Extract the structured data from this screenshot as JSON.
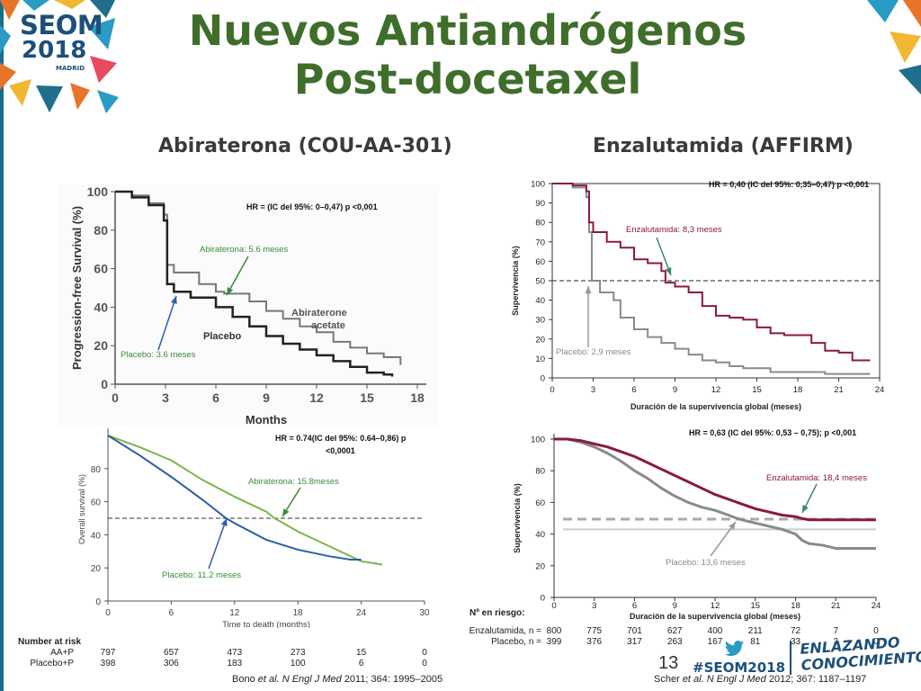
{
  "logo": {
    "line1": "SEOM",
    "line2": "2018",
    "city": "MADRID"
  },
  "title": {
    "line1": "Nuevos Antiandrógenos",
    "line2": "Post-docetaxel"
  },
  "subtitles": {
    "left": "Abiraterona (COU-AA-301)",
    "right": "Enzalutamida (AFFIRM)"
  },
  "page_number": "13",
  "hashtag": "#SEOM2018",
  "tagline": {
    "line1": "ENLAZANDO",
    "line2": "CONOCIMIENTO"
  },
  "citations": {
    "left": {
      "authors": "Bono",
      "etal": "et al.",
      "journal": "N Engl J Med",
      "rest": "2011; 364: 1995–2005"
    },
    "right": {
      "authors": "Scher",
      "etal": "et al.",
      "journal": "N Engl J Med",
      "rest": "2012; 367: 1187–1197"
    }
  },
  "colors": {
    "title_green": "#3f6e2b",
    "enzalutamide": "#8b1a3a",
    "placebo_gray": "#8a8a8a",
    "abiraterone_green": "#7ab648",
    "placebo_blue": "#2a5ea8",
    "annotation_green": "#3a8a3a"
  },
  "chart_data": [
    {
      "id": "abi_pfs",
      "type": "line",
      "xlabel": "Months",
      "ylabel": "Progression-free Survival (%)",
      "x_ticks": [
        0,
        3,
        6,
        9,
        12,
        15,
        18
      ],
      "y_ticks": [
        0,
        20,
        40,
        60,
        80,
        100
      ],
      "xlim": [
        0,
        18
      ],
      "ylim": [
        0,
        100
      ],
      "hr_text": "HR = (IC del 95%: 0–0,47) p <0,001",
      "annotations": {
        "drug": "Abiraterona: 5.6 meses",
        "placebo": "Placebo: 3.6 meses"
      },
      "curve_labels": {
        "drug1": "Abiraterone",
        "drug2": "acetate",
        "placebo": "Placebo"
      },
      "series": [
        {
          "name": "Abiraterone acetate",
          "x": [
            0,
            1,
            2,
            2.9,
            3.1,
            3.5,
            5,
            6,
            6.5,
            8,
            9,
            10,
            11,
            12,
            13,
            14,
            15,
            16,
            17
          ],
          "y": [
            100,
            98,
            94,
            88,
            62,
            58,
            52,
            48,
            47,
            43,
            38,
            34,
            30,
            27,
            22,
            19,
            16,
            14,
            10
          ]
        },
        {
          "name": "Placebo",
          "x": [
            0,
            1,
            2,
            2.9,
            3.1,
            3.5,
            4.5,
            6,
            7,
            8,
            9,
            10,
            11,
            12,
            13,
            14,
            15,
            16,
            16.5
          ],
          "y": [
            100,
            97,
            93,
            85,
            52,
            48,
            45,
            40,
            35,
            30,
            25,
            21,
            18,
            15,
            12,
            9,
            6,
            5,
            4
          ]
        }
      ]
    },
    {
      "id": "abi_os",
      "type": "line",
      "xlabel": "Time to death (months)",
      "ylabel": "Overall survival (%)",
      "x_ticks": [
        0,
        6,
        12,
        18,
        24,
        30
      ],
      "y_ticks": [
        0,
        20,
        40,
        60,
        80
      ],
      "xlim": [
        0,
        30
      ],
      "ylim": [
        0,
        100
      ],
      "reference_y": 50,
      "hr_text_line1": "HR = 0.74(IC del 95%: 0.64–0,86) p",
      "hr_text_line2": "<0,0001",
      "annotations": {
        "drug": "Abiraterona: 15.8meses",
        "placebo": "Placebo: 11.2 meses"
      },
      "series": [
        {
          "name": "AA+P",
          "x": [
            0,
            3,
            6,
            9,
            12,
            15,
            15.8,
            18,
            21,
            24,
            26
          ],
          "y": [
            100,
            93,
            85,
            73,
            63,
            54,
            50,
            42,
            33,
            24,
            22
          ]
        },
        {
          "name": "Placebo+P",
          "x": [
            0,
            3,
            6,
            9,
            11.2,
            12,
            15,
            18,
            21,
            23,
            24
          ],
          "y": [
            100,
            88,
            75,
            61,
            50,
            47,
            37,
            31,
            27,
            25,
            25
          ]
        }
      ],
      "risk_table": {
        "header": "Number at risk",
        "rows": [
          {
            "label": "AA+P",
            "values": [
              "797",
              "657",
              "473",
              "273",
              "15",
              "0"
            ]
          },
          {
            "label": "Placebo+P",
            "values": [
              "398",
              "306",
              "183",
              "100",
              "6",
              "0"
            ]
          }
        ]
      }
    },
    {
      "id": "enza_pfs",
      "type": "line",
      "xlabel": "Duración de la supervivencia global (meses)",
      "ylabel": "Supervivencia (%)",
      "x_ticks": [
        0,
        3,
        6,
        9,
        12,
        15,
        18,
        21,
        24
      ],
      "y_ticks": [
        0,
        10,
        20,
        30,
        40,
        50,
        60,
        70,
        80,
        90,
        100
      ],
      "xlim": [
        0,
        24
      ],
      "ylim": [
        0,
        100
      ],
      "reference_y": 50,
      "hr_text": "HR = 0,40 (IC del 95%: 0,35–0,47) p <0,001",
      "annotations": {
        "drug": "Enzalutamida: 8,3 meses",
        "placebo": "Placebo: 2,9 meses"
      },
      "series": [
        {
          "name": "Enzalutamida",
          "x": [
            0,
            1.5,
            2.5,
            2.7,
            3,
            4,
            5,
            6,
            7,
            8,
            8.3,
            9,
            10,
            11,
            12,
            13,
            14,
            15,
            16,
            17,
            19,
            20,
            21,
            22,
            23.3
          ],
          "y": [
            100,
            99,
            96,
            80,
            75,
            70,
            67,
            61,
            59,
            55,
            49,
            47,
            44,
            37,
            32,
            31,
            30,
            26,
            23,
            22,
            18,
            14,
            13,
            9,
            9
          ]
        },
        {
          "name": "Placebo",
          "x": [
            0,
            1.5,
            2.5,
            2.7,
            2.9,
            3.5,
            4.5,
            5,
            6,
            7,
            8,
            9,
            10,
            11,
            12,
            13,
            14,
            16,
            19,
            20,
            23.3
          ],
          "y": [
            100,
            98,
            93,
            75,
            50,
            44,
            40,
            31,
            25,
            21,
            18,
            15,
            12,
            9,
            8,
            6,
            5,
            3,
            3,
            2,
            2
          ]
        }
      ]
    },
    {
      "id": "enza_os",
      "type": "line",
      "xlabel": "Duración de la supervivencia global (meses)",
      "ylabel": "Supervivencia (%)",
      "x_ticks": [
        0,
        3,
        6,
        9,
        12,
        15,
        18,
        21,
        24
      ],
      "y_ticks": [
        0,
        20,
        40,
        60,
        80,
        100
      ],
      "xlim": [
        0,
        24
      ],
      "ylim": [
        0,
        100
      ],
      "reference_y": 50,
      "hr_text": "HR = 0,63 (IC del 95%: 0,53 – 0,75); p <0,001",
      "annotations": {
        "drug": "Enzalutamida: 18,4 meses",
        "placebo": "Placebo: 13,6 meses"
      },
      "series": [
        {
          "name": "Enzalutamida",
          "x": [
            0,
            1,
            2,
            3,
            4,
            5,
            6,
            7,
            8,
            9,
            10,
            11,
            12,
            13,
            14,
            15,
            16,
            17,
            18,
            18.4,
            19,
            20,
            21,
            22,
            23,
            24
          ],
          "y": [
            100,
            100,
            99,
            97,
            95,
            92,
            89,
            85,
            81,
            77,
            73,
            69,
            65,
            62,
            59,
            56,
            54,
            52,
            51,
            50,
            49,
            49,
            49,
            49,
            49,
            49
          ]
        },
        {
          "name": "Placebo",
          "x": [
            0,
            1,
            2,
            3,
            4,
            5,
            6,
            7,
            8,
            9,
            10,
            11,
            12,
            13,
            13.6,
            14,
            15,
            16,
            17,
            18,
            18.5,
            19,
            20,
            21,
            22,
            23,
            24
          ],
          "y": [
            100,
            100,
            98,
            95,
            91,
            86,
            80,
            75,
            69,
            64,
            60,
            57,
            55,
            52,
            50,
            49,
            47,
            45,
            43,
            40,
            36,
            34,
            33,
            31,
            31,
            31,
            31
          ]
        }
      ],
      "risk_table": {
        "header": "Nº en riesgo:",
        "rows": [
          {
            "label": "Enzalutamida, n =",
            "values": [
              "800",
              "775",
              "701",
              "627",
              "400",
              "211",
              "72",
              "7",
              "0"
            ]
          },
          {
            "label": "Placebo, n =",
            "values": [
              "399",
              "376",
              "317",
              "263",
              "167",
              "81",
              "33",
              "3",
              "0"
            ]
          }
        ]
      }
    }
  ]
}
